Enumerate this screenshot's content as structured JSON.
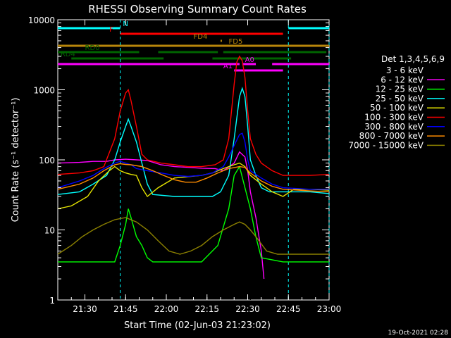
{
  "chart_data": {
    "type": "line",
    "title": "RHESSI Observing Summary Count Rates",
    "xlabel": "Start Time (02-Jun-03 21:23:02)",
    "ylabel": "Count Rate (s⁻¹ detector⁻¹)",
    "yscale": "log",
    "ylim": [
      1,
      10000
    ],
    "xlim_minutes": [
      -3,
      97
    ],
    "x_ticks": [
      {
        "m": 7,
        "label": "21:30"
      },
      {
        "m": 22,
        "label": "21:45"
      },
      {
        "m": 37,
        "label": "22:00"
      },
      {
        "m": 52,
        "label": "22:15"
      },
      {
        "m": 67,
        "label": "22:30"
      },
      {
        "m": 82,
        "label": "22:45"
      },
      {
        "m": 97,
        "label": "23:00"
      }
    ],
    "y_ticks": [
      {
        "v": 1,
        "label": "1"
      },
      {
        "v": 10,
        "label": "10"
      },
      {
        "v": 100,
        "label": "100"
      },
      {
        "v": 1000,
        "label": "1000"
      },
      {
        "v": 10000,
        "label": "10000"
      }
    ],
    "legend_title": "Det 1,3,4,5,6,9",
    "legend_position": "right",
    "footer": "19-Oct-2021 02:28",
    "series": [
      {
        "name": "3 - 6 keV",
        "color": "#000000",
        "points": [
          [
            24,
            130
          ],
          [
            26,
            135
          ],
          [
            30,
            125
          ],
          [
            34,
            120
          ],
          [
            38,
            118
          ],
          [
            42,
            115
          ],
          [
            46,
            112
          ],
          [
            50,
            112
          ],
          [
            54,
            105
          ],
          [
            57,
            95
          ],
          [
            60,
            90
          ],
          [
            62,
            70
          ],
          [
            64,
            40
          ],
          [
            65,
            15
          ],
          [
            66,
            6
          ],
          [
            67,
            2
          ],
          [
            68,
            1
          ]
        ]
      },
      {
        "name": "6 - 12 keV",
        "color": "#ff00ff",
        "points": [
          [
            -3,
            90
          ],
          [
            5,
            92
          ],
          [
            10,
            95
          ],
          [
            15,
            95
          ],
          [
            18,
            100
          ],
          [
            22,
            102
          ],
          [
            26,
            100
          ],
          [
            30,
            98
          ],
          [
            35,
            85
          ],
          [
            40,
            80
          ],
          [
            45,
            78
          ],
          [
            50,
            76
          ],
          [
            55,
            75
          ],
          [
            58,
            70
          ],
          [
            62,
            90
          ],
          [
            64,
            130
          ],
          [
            66,
            110
          ],
          [
            67,
            70
          ],
          [
            68,
            35
          ],
          [
            70,
            15
          ],
          [
            72,
            5
          ],
          [
            73,
            2
          ]
        ]
      },
      {
        "name": "12 - 25 keV",
        "color": "#00ff00",
        "points": [
          [
            -3,
            3.5
          ],
          [
            5,
            3.5
          ],
          [
            10,
            3.5
          ],
          [
            18,
            3.5
          ],
          [
            20,
            6
          ],
          [
            22,
            12
          ],
          [
            23,
            20
          ],
          [
            24,
            15
          ],
          [
            26,
            8
          ],
          [
            28,
            6
          ],
          [
            30,
            4
          ],
          [
            32,
            3.5
          ],
          [
            40,
            3.5
          ],
          [
            50,
            3.5
          ],
          [
            56,
            6
          ],
          [
            60,
            20
          ],
          [
            62,
            60
          ],
          [
            64,
            80
          ],
          [
            66,
            40
          ],
          [
            68,
            20
          ],
          [
            70,
            8
          ],
          [
            72,
            4
          ],
          [
            80,
            3.5
          ],
          [
            90,
            3.5
          ],
          [
            97,
            3.5
          ]
        ]
      },
      {
        "name": "25 - 50 keV",
        "color": "#00ffff",
        "points": [
          [
            -3,
            32
          ],
          [
            5,
            35
          ],
          [
            10,
            45
          ],
          [
            15,
            60
          ],
          [
            18,
            100
          ],
          [
            20,
            180
          ],
          [
            22,
            300
          ],
          [
            23,
            380
          ],
          [
            24,
            300
          ],
          [
            26,
            180
          ],
          [
            28,
            90
          ],
          [
            30,
            45
          ],
          [
            32,
            32
          ],
          [
            40,
            30
          ],
          [
            50,
            30
          ],
          [
            54,
            30
          ],
          [
            57,
            35
          ],
          [
            60,
            60
          ],
          [
            62,
            200
          ],
          [
            64,
            800
          ],
          [
            65,
            1050
          ],
          [
            66,
            800
          ],
          [
            67,
            300
          ],
          [
            68,
            100
          ],
          [
            70,
            60
          ],
          [
            72,
            40
          ],
          [
            75,
            35
          ],
          [
            80,
            35
          ],
          [
            90,
            35
          ],
          [
            97,
            33
          ]
        ]
      },
      {
        "name": "50 - 100 keV",
        "color": "#e6e600",
        "points": [
          [
            -3,
            20
          ],
          [
            2,
            22
          ],
          [
            8,
            30
          ],
          [
            12,
            50
          ],
          [
            16,
            70
          ],
          [
            18,
            80
          ],
          [
            20,
            70
          ],
          [
            22,
            65
          ],
          [
            24,
            62
          ],
          [
            26,
            60
          ],
          [
            28,
            40
          ],
          [
            30,
            30
          ],
          [
            34,
            40
          ],
          [
            40,
            55
          ],
          [
            46,
            58
          ],
          [
            50,
            60
          ],
          [
            54,
            65
          ],
          [
            58,
            75
          ],
          [
            60,
            80
          ],
          [
            62,
            85
          ],
          [
            64,
            90
          ],
          [
            66,
            80
          ],
          [
            68,
            60
          ],
          [
            72,
            45
          ],
          [
            76,
            35
          ],
          [
            80,
            30
          ],
          [
            84,
            38
          ],
          [
            90,
            38
          ],
          [
            97,
            37
          ]
        ]
      },
      {
        "name": "100 - 300 keV",
        "color": "#ff0000",
        "points": [
          [
            -3,
            62
          ],
          [
            5,
            65
          ],
          [
            10,
            70
          ],
          [
            14,
            80
          ],
          [
            18,
            200
          ],
          [
            20,
            500
          ],
          [
            22,
            900
          ],
          [
            23,
            1000
          ],
          [
            24,
            700
          ],
          [
            26,
            300
          ],
          [
            28,
            120
          ],
          [
            30,
            100
          ],
          [
            35,
            90
          ],
          [
            40,
            85
          ],
          [
            45,
            80
          ],
          [
            50,
            80
          ],
          [
            55,
            85
          ],
          [
            58,
            100
          ],
          [
            60,
            200
          ],
          [
            62,
            1200
          ],
          [
            63,
            2500
          ],
          [
            64,
            3000
          ],
          [
            65,
            2600
          ],
          [
            66,
            1500
          ],
          [
            67,
            500
          ],
          [
            68,
            200
          ],
          [
            70,
            120
          ],
          [
            72,
            90
          ],
          [
            76,
            70
          ],
          [
            80,
            60
          ],
          [
            84,
            60
          ],
          [
            90,
            60
          ],
          [
            97,
            62
          ]
        ]
      },
      {
        "name": "300 - 800 keV",
        "color": "#0000ff",
        "points": [
          [
            -3,
            40
          ],
          [
            5,
            50
          ],
          [
            10,
            60
          ],
          [
            14,
            75
          ],
          [
            18,
            90
          ],
          [
            20,
            95
          ],
          [
            22,
            90
          ],
          [
            24,
            85
          ],
          [
            26,
            75
          ],
          [
            30,
            70
          ],
          [
            35,
            65
          ],
          [
            40,
            60
          ],
          [
            45,
            58
          ],
          [
            50,
            60
          ],
          [
            54,
            65
          ],
          [
            58,
            80
          ],
          [
            60,
            110
          ],
          [
            62,
            160
          ],
          [
            64,
            230
          ],
          [
            65,
            240
          ],
          [
            66,
            180
          ],
          [
            67,
            100
          ],
          [
            68,
            70
          ],
          [
            72,
            55
          ],
          [
            76,
            45
          ],
          [
            80,
            40
          ],
          [
            90,
            38
          ],
          [
            97,
            38
          ]
        ]
      },
      {
        "name": "800 - 7000 keV",
        "color": "#ff8c00",
        "points": [
          [
            -3,
            38
          ],
          [
            5,
            45
          ],
          [
            10,
            55
          ],
          [
            14,
            70
          ],
          [
            18,
            85
          ],
          [
            20,
            88
          ],
          [
            22,
            86
          ],
          [
            24,
            85
          ],
          [
            28,
            80
          ],
          [
            32,
            70
          ],
          [
            36,
            60
          ],
          [
            40,
            52
          ],
          [
            44,
            48
          ],
          [
            48,
            48
          ],
          [
            52,
            55
          ],
          [
            56,
            65
          ],
          [
            60,
            75
          ],
          [
            64,
            80
          ],
          [
            66,
            78
          ],
          [
            68,
            65
          ],
          [
            72,
            50
          ],
          [
            76,
            42
          ],
          [
            80,
            38
          ],
          [
            90,
            36
          ],
          [
            97,
            35
          ]
        ]
      },
      {
        "name": "7000 - 15000 keV",
        "color": "#8b8000",
        "points": [
          [
            -3,
            4.5
          ],
          [
            2,
            6
          ],
          [
            6,
            8
          ],
          [
            10,
            10
          ],
          [
            14,
            12
          ],
          [
            18,
            14
          ],
          [
            22,
            15
          ],
          [
            26,
            13
          ],
          [
            30,
            10
          ],
          [
            34,
            7
          ],
          [
            38,
            5
          ],
          [
            42,
            4.5
          ],
          [
            46,
            5
          ],
          [
            50,
            6
          ],
          [
            54,
            8
          ],
          [
            58,
            10
          ],
          [
            62,
            12
          ],
          [
            64,
            13
          ],
          [
            66,
            12
          ],
          [
            68,
            10
          ],
          [
            70,
            8
          ],
          [
            74,
            5
          ],
          [
            78,
            4.5
          ],
          [
            84,
            4.5
          ],
          [
            90,
            4.5
          ],
          [
            97,
            4.5
          ]
        ]
      }
    ],
    "flag_bars": [
      {
        "label": "N",
        "color": "#00ffff",
        "y": 40,
        "segments": [
          [
            -3,
            20
          ],
          [
            82,
            97
          ]
        ],
        "label_x": 21
      },
      {
        "label": "F",
        "color": "#ff0000",
        "y": 48,
        "segments": [
          [
            20,
            80
          ]
        ],
        "label_x": 16
      },
      {
        "label": "FD4",
        "color": "#b8860b",
        "y": 58,
        "segments": [
          [
            57,
            57.5
          ]
        ],
        "label_x": 47
      },
      {
        "label": "FD5",
        "color": "#b8860b",
        "y": 65,
        "segments": [
          [
            -3,
            97
          ]
        ],
        "label_x": 60
      },
      {
        "label": "RD0",
        "color": "#006400",
        "y": 74,
        "segments": [
          [
            -3,
            27
          ],
          [
            34,
            56
          ],
          [
            58,
            96
          ]
        ],
        "label_x": 7
      },
      {
        "label": "RD4",
        "color": "#006400",
        "y": 83,
        "segments": [
          [
            2,
            36
          ],
          [
            54,
            83
          ]
        ],
        "label_x": -2
      },
      {
        "label": "A0",
        "color": "#ff00ff",
        "y": 91,
        "segments": [
          [
            -3,
            64
          ],
          [
            65,
            70
          ],
          [
            76,
            97
          ]
        ],
        "label_x": 66
      },
      {
        "label": "A1",
        "color": "#ff00ff",
        "y": 100,
        "segments": [
          [
            62,
            80
          ]
        ],
        "label_x": 58
      }
    ],
    "dashed_verticals": [
      20,
      82,
      97
    ]
  }
}
